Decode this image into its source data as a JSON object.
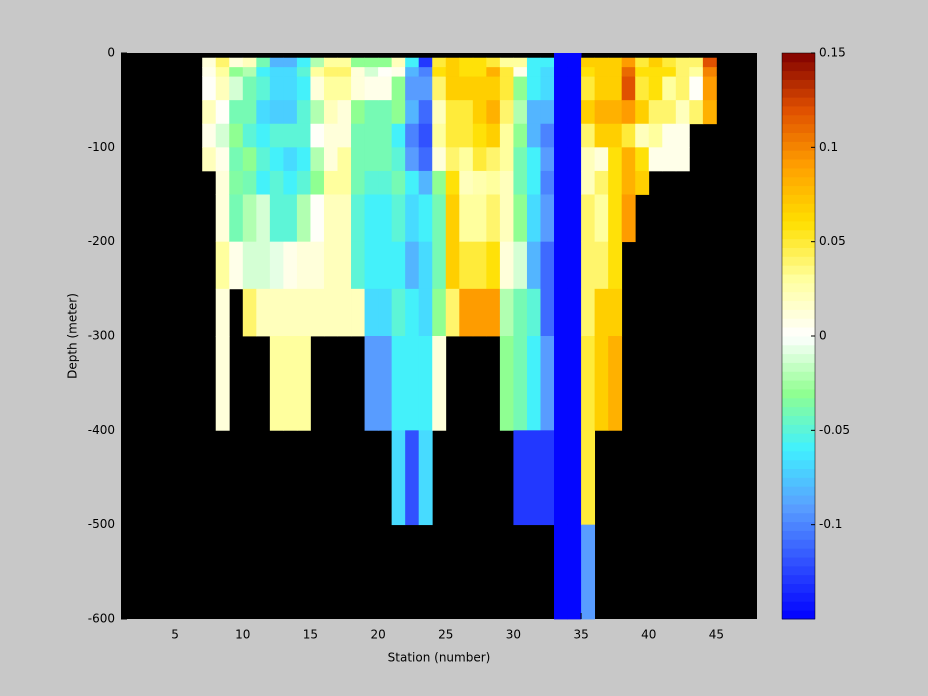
{
  "chart_data": {
    "type": "heatmap",
    "xlabel": "Station (number)",
    "ylabel": "Depth (meter)",
    "xlim": [
      1,
      48
    ],
    "ylim": [
      -600,
      0
    ],
    "xticks": [
      5,
      10,
      15,
      20,
      25,
      30,
      35,
      40,
      45
    ],
    "yticks": [
      -600,
      -500,
      -400,
      -300,
      -200,
      -100,
      0
    ],
    "x": [
      1,
      2,
      3,
      4,
      5,
      6,
      7,
      8,
      9,
      10,
      11,
      12,
      13,
      14,
      15,
      16,
      17,
      18,
      19,
      20,
      21,
      22,
      23,
      24,
      25,
      26,
      27,
      28,
      29,
      30,
      31,
      32,
      33,
      34,
      35,
      36,
      37,
      38,
      39,
      40,
      41,
      42,
      43,
      44,
      45,
      46,
      47,
      48
    ],
    "y": [
      0,
      -5,
      -15,
      -25,
      -50,
      -75,
      -100,
      -125,
      -150,
      -200,
      -250,
      -300,
      -400,
      -500,
      -600
    ],
    "z": [
      [
        null,
        null,
        null,
        null,
        null,
        null,
        null,
        null,
        null,
        null,
        null,
        null,
        null,
        null
      ],
      [
        null,
        null,
        null,
        null,
        null,
        null,
        null,
        null,
        null,
        null,
        null,
        null,
        null,
        null
      ],
      [
        null,
        null,
        null,
        null,
        null,
        null,
        null,
        null,
        null,
        null,
        null,
        null,
        null,
        null
      ],
      [
        null,
        null,
        null,
        null,
        null,
        null,
        null,
        null,
        null,
        null,
        null,
        null,
        null,
        null
      ],
      [
        null,
        null,
        null,
        null,
        null,
        null,
        null,
        null,
        null,
        null,
        null,
        null,
        null,
        null
      ],
      [
        null,
        null,
        null,
        null,
        null,
        null,
        null,
        null,
        null,
        null,
        null,
        null,
        null,
        null
      ],
      [
        null,
        0.01,
        0.005,
        0,
        0.02,
        0.005,
        0.02,
        null,
        null,
        null,
        null,
        null,
        null,
        null
      ],
      [
        null,
        0.04,
        0.03,
        0.02,
        0,
        -0.01,
        0.005,
        0.01,
        0.01,
        0.03,
        0.01,
        0.01,
        null,
        null
      ],
      [
        null,
        0.01,
        -0.03,
        -0.01,
        -0.04,
        -0.03,
        -0.04,
        -0.035,
        -0.04,
        0.005,
        null,
        null,
        null,
        null
      ],
      [
        null,
        0.02,
        -0.02,
        -0.04,
        -0.04,
        -0.05,
        -0.03,
        -0.04,
        -0.02,
        -0.01,
        0.04,
        null,
        null,
        null
      ],
      [
        null,
        -0.04,
        -0.06,
        -0.05,
        -0.07,
        -0.06,
        -0.05,
        -0.06,
        -0.01,
        -0.01,
        0.02,
        null,
        null,
        null
      ],
      [
        null,
        -0.08,
        -0.07,
        -0.07,
        -0.075,
        -0.05,
        -0.06,
        -0.05,
        -0.05,
        -0.005,
        0.02,
        0.03,
        null,
        null
      ],
      [
        null,
        -0.08,
        -0.07,
        -0.07,
        -0.075,
        -0.05,
        -0.07,
        -0.06,
        -0.05,
        0.005,
        0.02,
        0.03,
        null,
        null
      ],
      [
        null,
        -0.06,
        -0.05,
        -0.06,
        -0.05,
        -0.05,
        -0.06,
        -0.05,
        -0.02,
        0.01,
        0.02,
        0.03,
        null,
        null
      ],
      [
        null,
        -0.02,
        0.03,
        0.01,
        -0.02,
        0,
        -0.02,
        -0.03,
        0,
        0.01,
        0.02,
        null,
        null,
        null
      ],
      [
        null,
        0.03,
        0.04,
        0.03,
        0.02,
        0.01,
        0.01,
        0.03,
        0.02,
        0.02,
        0.02,
        null,
        null,
        null
      ],
      [
        null,
        0.03,
        0.04,
        0.03,
        0.01,
        0.01,
        0.03,
        0.03,
        0.02,
        0.02,
        0.02,
        null,
        null,
        null
      ],
      [
        null,
        -0.03,
        0.01,
        0.01,
        -0.03,
        -0.04,
        -0.04,
        -0.04,
        -0.05,
        -0.05,
        0.02,
        null,
        null,
        null
      ],
      [
        null,
        -0.03,
        -0.01,
        0.005,
        -0.04,
        -0.04,
        -0.04,
        -0.05,
        -0.06,
        -0.06,
        -0.07,
        -0.09,
        null,
        null
      ],
      [
        null,
        -0.03,
        0,
        0.005,
        -0.04,
        -0.04,
        -0.04,
        -0.05,
        -0.06,
        -0.06,
        -0.07,
        -0.09,
        null,
        null
      ],
      [
        null,
        0.02,
        0.005,
        -0.03,
        -0.03,
        -0.06,
        -0.05,
        -0.04,
        -0.05,
        -0.06,
        -0.05,
        -0.06,
        -0.07,
        null
      ],
      [
        null,
        -0.06,
        -0.08,
        -0.09,
        -0.08,
        -0.1,
        -0.09,
        -0.06,
        -0.07,
        -0.08,
        -0.06,
        -0.06,
        -0.12,
        null
      ],
      [
        null,
        -0.13,
        -0.1,
        -0.09,
        -0.11,
        -0.12,
        -0.11,
        -0.08,
        -0.06,
        -0.07,
        -0.07,
        -0.06,
        -0.07,
        null
      ],
      [
        null,
        0.05,
        0.06,
        0.04,
        0.02,
        0.03,
        0.01,
        -0.03,
        -0.04,
        -0.04,
        -0.03,
        0.01,
        null,
        null
      ],
      [
        null,
        0.07,
        0.07,
        0.07,
        0.05,
        0.05,
        0.04,
        0.06,
        0.07,
        0.07,
        0.04,
        null,
        null,
        null
      ],
      [
        null,
        0.06,
        0.06,
        0.07,
        0.05,
        0.05,
        0.03,
        0.02,
        0.03,
        0.05,
        0.09,
        null,
        null,
        null
      ],
      [
        null,
        0.06,
        0.06,
        0.07,
        0.07,
        0.06,
        0.05,
        0.025,
        0.03,
        0.05,
        0.09,
        null,
        null,
        null
      ],
      [
        null,
        0.05,
        0.08,
        0.07,
        0.08,
        0.07,
        0.04,
        0.03,
        0.04,
        0.06,
        0.09,
        null,
        null,
        null
      ],
      [
        null,
        0.03,
        0.05,
        0.05,
        0.04,
        0.03,
        0.03,
        0.02,
        0.02,
        0.01,
        -0.02,
        -0.03,
        null,
        null
      ],
      [
        null,
        0.03,
        0.005,
        -0.03,
        -0.02,
        -0.03,
        -0.04,
        -0.04,
        -0.03,
        -0.01,
        -0.04,
        -0.04,
        -0.13,
        null
      ],
      [
        null,
        -0.06,
        -0.06,
        -0.06,
        -0.08,
        -0.08,
        -0.06,
        -0.06,
        -0.07,
        -0.08,
        -0.05,
        -0.06,
        -0.13,
        null
      ],
      [
        null,
        -0.06,
        -0.07,
        -0.07,
        -0.08,
        -0.1,
        -0.09,
        -0.1,
        -0.09,
        -0.11,
        -0.11,
        -0.09,
        -0.13,
        null
      ],
      [
        -0.15,
        -0.15,
        -0.15,
        -0.15,
        -0.15,
        -0.15,
        -0.15,
        -0.15,
        -0.15,
        -0.15,
        -0.15,
        -0.15,
        -0.15,
        -0.15
      ],
      [
        -0.15,
        -0.15,
        -0.15,
        -0.15,
        -0.15,
        -0.15,
        -0.15,
        -0.15,
        -0.15,
        -0.15,
        -0.15,
        -0.15,
        -0.15,
        -0.15
      ],
      [
        null,
        0.07,
        0.06,
        0.05,
        0.07,
        0.04,
        0.02,
        0.02,
        0.04,
        0.04,
        0.04,
        0.05,
        0.05,
        -0.09
      ],
      [
        null,
        0.07,
        0.07,
        0.07,
        0.08,
        0.07,
        0.01,
        0.04,
        0.03,
        0.04,
        0.07,
        0.07,
        null,
        null
      ],
      [
        null,
        0.07,
        0.07,
        0.07,
        0.08,
        0.07,
        0.06,
        0.06,
        0.06,
        0.06,
        0.07,
        0.08,
        null,
        null
      ],
      [
        null,
        0.09,
        0.11,
        0.12,
        0.09,
        0.05,
        0.08,
        0.08,
        0.09,
        null,
        null,
        null,
        null,
        null
      ],
      [
        null,
        0.05,
        0.06,
        0.05,
        0.07,
        0.02,
        0.06,
        0.07,
        null,
        null,
        null,
        null,
        null,
        null
      ],
      [
        null,
        0.07,
        0.06,
        0.06,
        0.04,
        0.03,
        0.005,
        null,
        null,
        null,
        null,
        null,
        null,
        null
      ],
      [
        null,
        0.05,
        0.06,
        0.03,
        0.04,
        0.005,
        0.005,
        null,
        null,
        null,
        null,
        null,
        null,
        null
      ],
      [
        null,
        0.04,
        0.04,
        0.04,
        0.02,
        0.005,
        0.005,
        null,
        null,
        null,
        null,
        null,
        null,
        null
      ],
      [
        null,
        0.04,
        0.03,
        0,
        0.04,
        null,
        null,
        null,
        null,
        null,
        null,
        null,
        null,
        null
      ],
      [
        null,
        0.12,
        0.1,
        0.09,
        0.08,
        null,
        null,
        null,
        null,
        null,
        null,
        null,
        null,
        null
      ],
      [
        null,
        null,
        null,
        null,
        null,
        null,
        null,
        null,
        null,
        null,
        null,
        null,
        null,
        null
      ],
      [
        null,
        null,
        null,
        null,
        null,
        null,
        null,
        null,
        null,
        null,
        null,
        null,
        null,
        null
      ],
      [
        null,
        null,
        null,
        null,
        null,
        null,
        null,
        null,
        null,
        null,
        null,
        null,
        null,
        null
      ]
    ],
    "clim": [
      -0.15,
      0.15
    ],
    "cticks": [
      -0.1,
      -0.05,
      0,
      0.05,
      0.1,
      0.15
    ],
    "colormap": [
      "#0000ff",
      "#3050ff",
      "#5aa0ff",
      "#40f0ff",
      "#90ff90",
      "#ffffff",
      "#ffffa0",
      "#ffe000",
      "#ffa000",
      "#e05000",
      "#800000"
    ],
    "levels": 64,
    "background": "#000000"
  }
}
